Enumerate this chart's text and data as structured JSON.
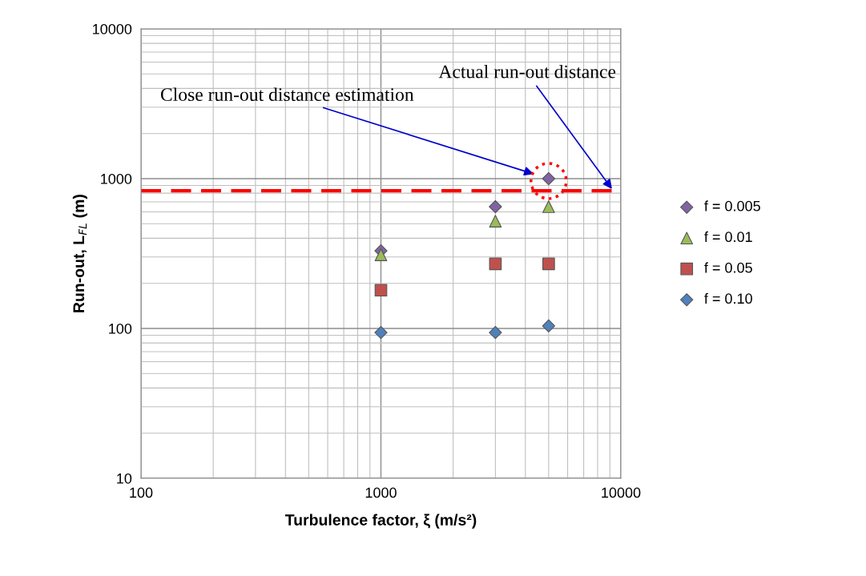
{
  "chart_data": {
    "type": "scatter",
    "xlabel": "Turbulence factor, ξ (m/s²)",
    "ylabel": "Run-out, L$_{FL}$ (m)",
    "log": "xy",
    "xlim": [
      100,
      10000
    ],
    "xticks": [
      100,
      1000,
      10000
    ],
    "ylim": [
      10,
      10000
    ],
    "yticks": [
      10,
      100,
      1000,
      10000
    ],
    "grid": true,
    "legend": "right",
    "x": [
      1000,
      3000,
      5000
    ],
    "series": [
      {
        "name": "f = 0.005",
        "color": "#8064a2",
        "marker": "diamond",
        "values": [
          330,
          650,
          1000
        ]
      },
      {
        "name": "f = 0.01",
        "color": "#9bbb59",
        "marker": "triangle",
        "values": [
          310,
          520,
          650
        ]
      },
      {
        "name": "f = 0.05",
        "color": "#c0504d",
        "marker": "square",
        "values": [
          180,
          270,
          270
        ]
      },
      {
        "name": "f = 0.10",
        "color": "#4f81bd",
        "marker": "diamond",
        "values": [
          94,
          94,
          104
        ]
      }
    ],
    "ref_lines": [
      {
        "axis": "y",
        "value": 830,
        "label": "Actual run-out distance",
        "color": "#ff0000",
        "line_style": "dashed"
      }
    ],
    "annotations": [
      "Close run-out distance estimation"
    ]
  }
}
